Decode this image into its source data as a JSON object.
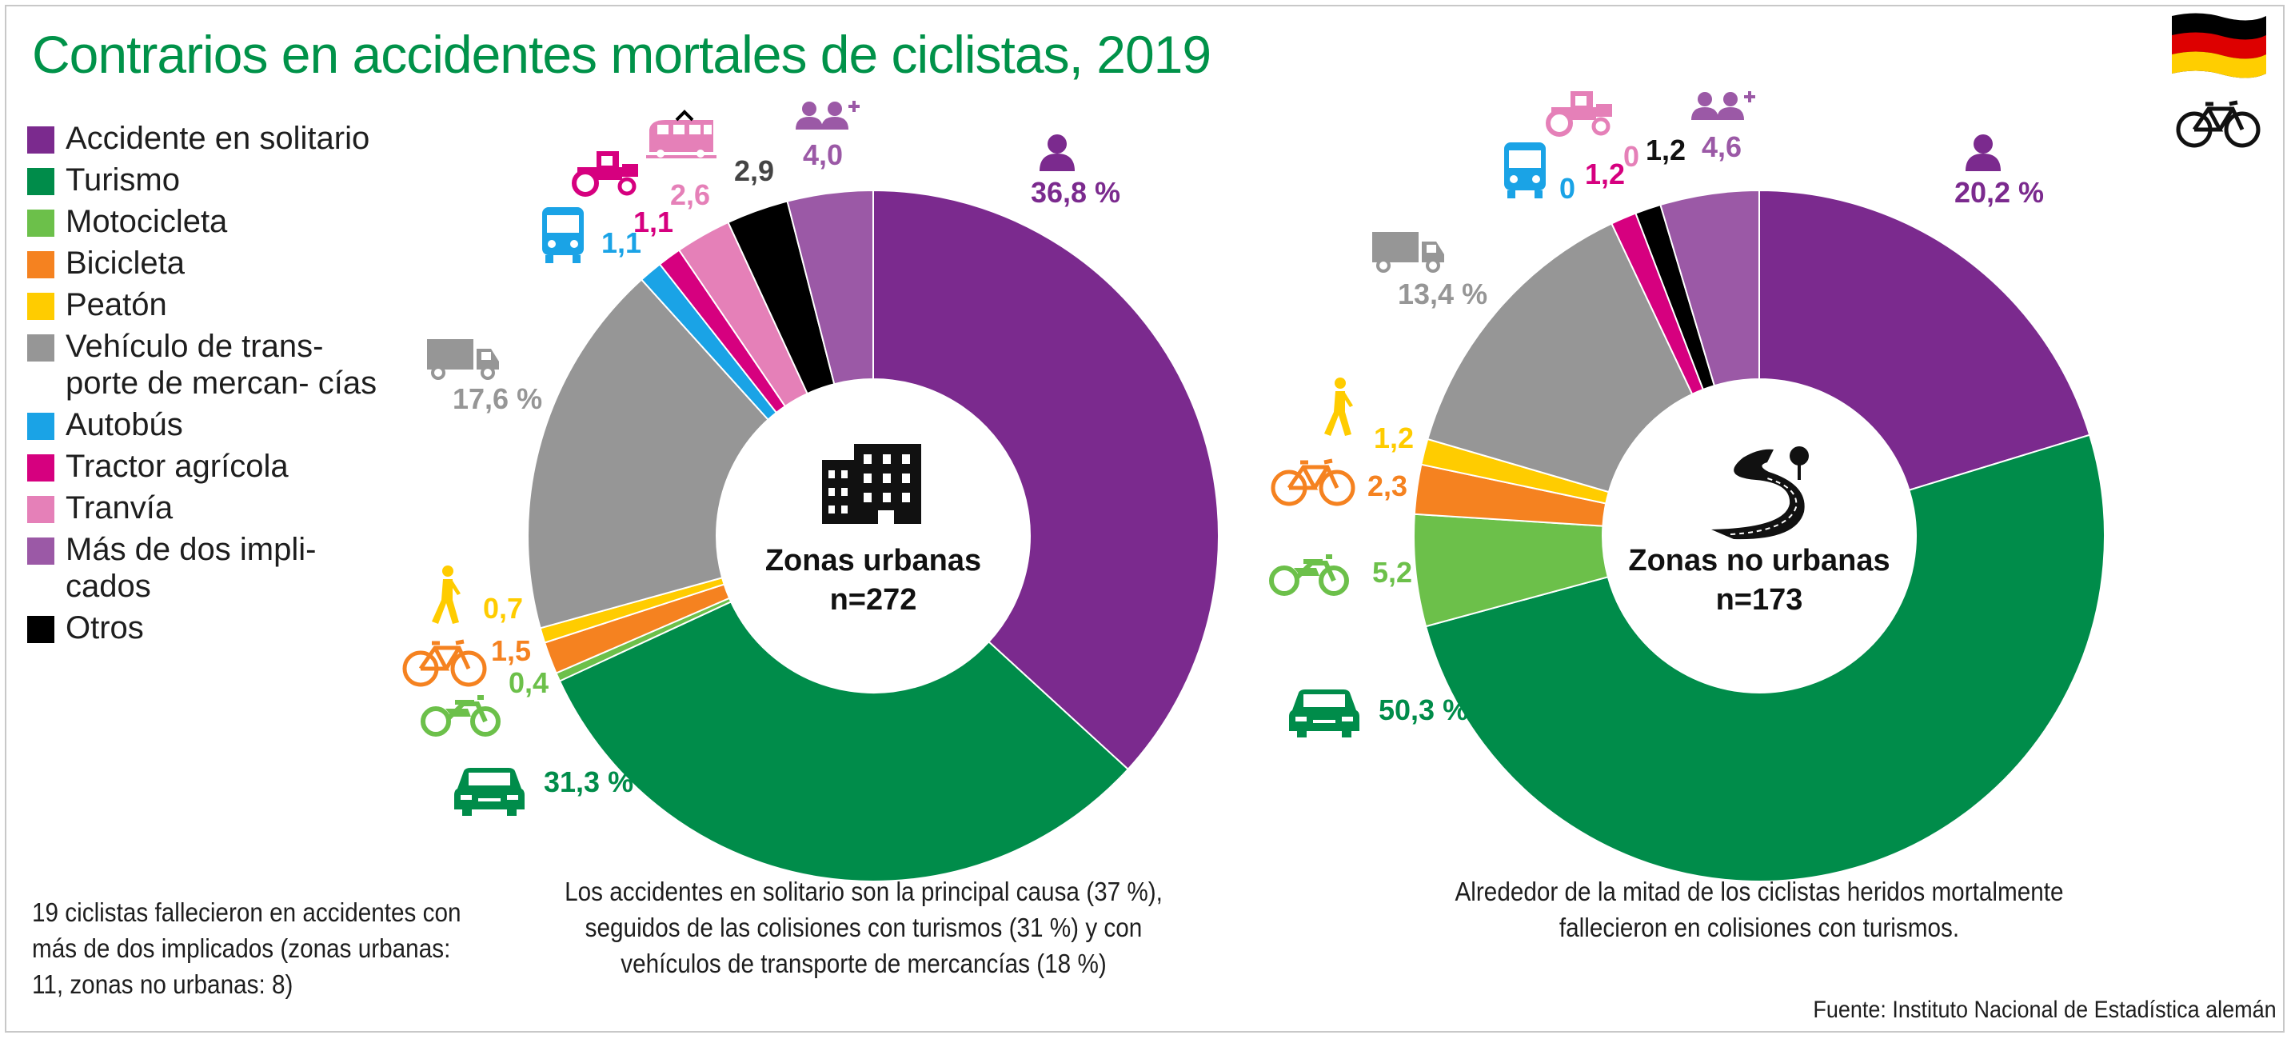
{
  "title": "Contrarios en accidentes mortales de ciclistas, 2019",
  "legend": [
    {
      "label": "Accidente en solitario",
      "color": "#7b2a8e"
    },
    {
      "label": "Turismo",
      "color": "#008c4a"
    },
    {
      "label": "Motocicleta",
      "color": "#6cc04a"
    },
    {
      "label": "Bicicleta",
      "color": "#f58220"
    },
    {
      "label": "Peatón",
      "color": "#ffcc00"
    },
    {
      "label": "Vehículo de transporte de mercancías",
      "color": "#969696"
    },
    {
      "label": "Autobús",
      "color": "#1aa3e6"
    },
    {
      "label": "Tractor agrícola",
      "color": "#d6007f"
    },
    {
      "label": "Tranvía",
      "color": "#e580b8"
    },
    {
      "label": "Más de dos implicados",
      "color": "#9b59a6"
    },
    {
      "label": "Otros",
      "color": "#000000"
    }
  ],
  "legend_display": [
    "Accidente en solitario",
    "Turismo",
    "Motocicleta",
    "Bicicleta",
    "Peatón",
    "Vehículo de trans- porte de mercan- cías",
    "Autobús",
    "Tractor agrícola",
    "Tranvía",
    "Más de dos impli- cados",
    "Otros"
  ],
  "chart_data": [
    {
      "type": "pie",
      "title": "Zonas urbanas",
      "subtitle": "n=272",
      "categories": [
        "Accidente en solitario",
        "Turismo",
        "Motocicleta",
        "Bicicleta",
        "Peatón",
        "Vehículo de transporte de mercancías",
        "Autobús",
        "Tractor agrícola",
        "Tranvía",
        "Otros",
        "Más de dos implicados"
      ],
      "values": [
        36.8,
        31.3,
        0.4,
        1.5,
        0.7,
        17.6,
        1.1,
        1.1,
        2.6,
        2.9,
        4.0
      ],
      "labels": [
        "36,8 %",
        "31,3 %",
        "0,4",
        "1,5",
        "0,7",
        "17,6 %",
        "1,1",
        "1,1",
        "2,6",
        "2,9",
        "4,0"
      ]
    },
    {
      "type": "pie",
      "title": "Zonas no urbanas",
      "subtitle": "n=173",
      "categories": [
        "Accidente en solitario",
        "Turismo",
        "Motocicleta",
        "Bicicleta",
        "Peatón",
        "Vehículo de transporte de mercancías",
        "Autobús",
        "Tractor agrícola",
        "Tranvía",
        "Otros",
        "Más de dos implicados"
      ],
      "values": [
        20.2,
        50.3,
        5.2,
        2.3,
        1.2,
        13.4,
        0,
        1.2,
        0,
        1.2,
        4.6
      ],
      "labels": [
        "20,2 %",
        "50,3 %",
        "5,2",
        "2,3",
        "1,2",
        "13,4 %",
        "0",
        "1,2",
        "0",
        "1,2",
        "4,6"
      ]
    }
  ],
  "captions": {
    "urban": "Los accidentes en solitario son la principal causa (37 %), seguidos de las colisiones con turismos (31 %) y con vehículos de transporte de mercancías (18 %)",
    "rural": "Alrededor de la mitad de los ciclistas heridos mortalmente fallecieron en colisiones con turismos."
  },
  "note": "19 ciclistas fallecieron en accidentes con más de dos implicados (zonas urbanas: 11, zonas no urbanas: 8)",
  "source": "Fuente: Instituto Nacional de Estadística alemán",
  "icons": {
    "flag": "germany-flag-icon",
    "bicycle": "bicycle-icon",
    "urban": "buildings-icon",
    "rural": "winding-road-icon",
    "categories": [
      "person-icon",
      "car-icon",
      "motorcycle-icon",
      "bicycle-icon",
      "pedestrian-icon",
      "truck-icon",
      "bus-icon",
      "tractor-icon",
      "tram-icon",
      "people-plus-icon",
      "none"
    ]
  }
}
